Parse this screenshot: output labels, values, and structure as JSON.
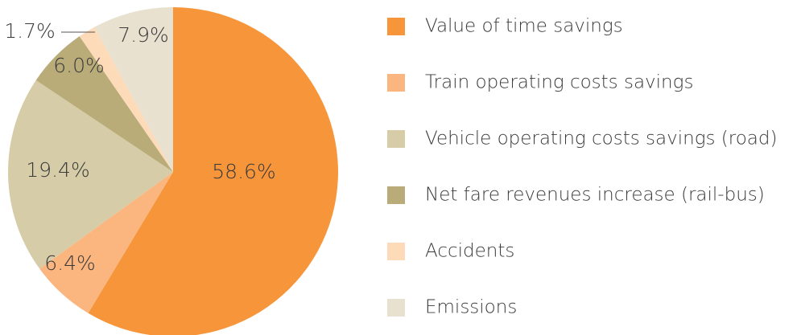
{
  "chart_data": {
    "type": "pie",
    "categories": [
      "Value of time savings",
      "Train operating costs savings",
      "Vehicle operating costs savings (road)",
      "Net fare revenues increase (rail-bus)",
      "Accidents",
      "Emissions"
    ],
    "values": [
      58.6,
      6.4,
      19.4,
      6.0,
      1.7,
      7.9
    ],
    "value_labels": [
      "58.6%",
      "6.4%",
      "19.4%",
      "6.0%",
      "1.7%",
      "7.9%"
    ],
    "colors": [
      "#f7953b",
      "#fbb67f",
      "#d6cca7",
      "#b9ac79",
      "#fddab8",
      "#e8e1d0"
    ],
    "legend": "right"
  }
}
